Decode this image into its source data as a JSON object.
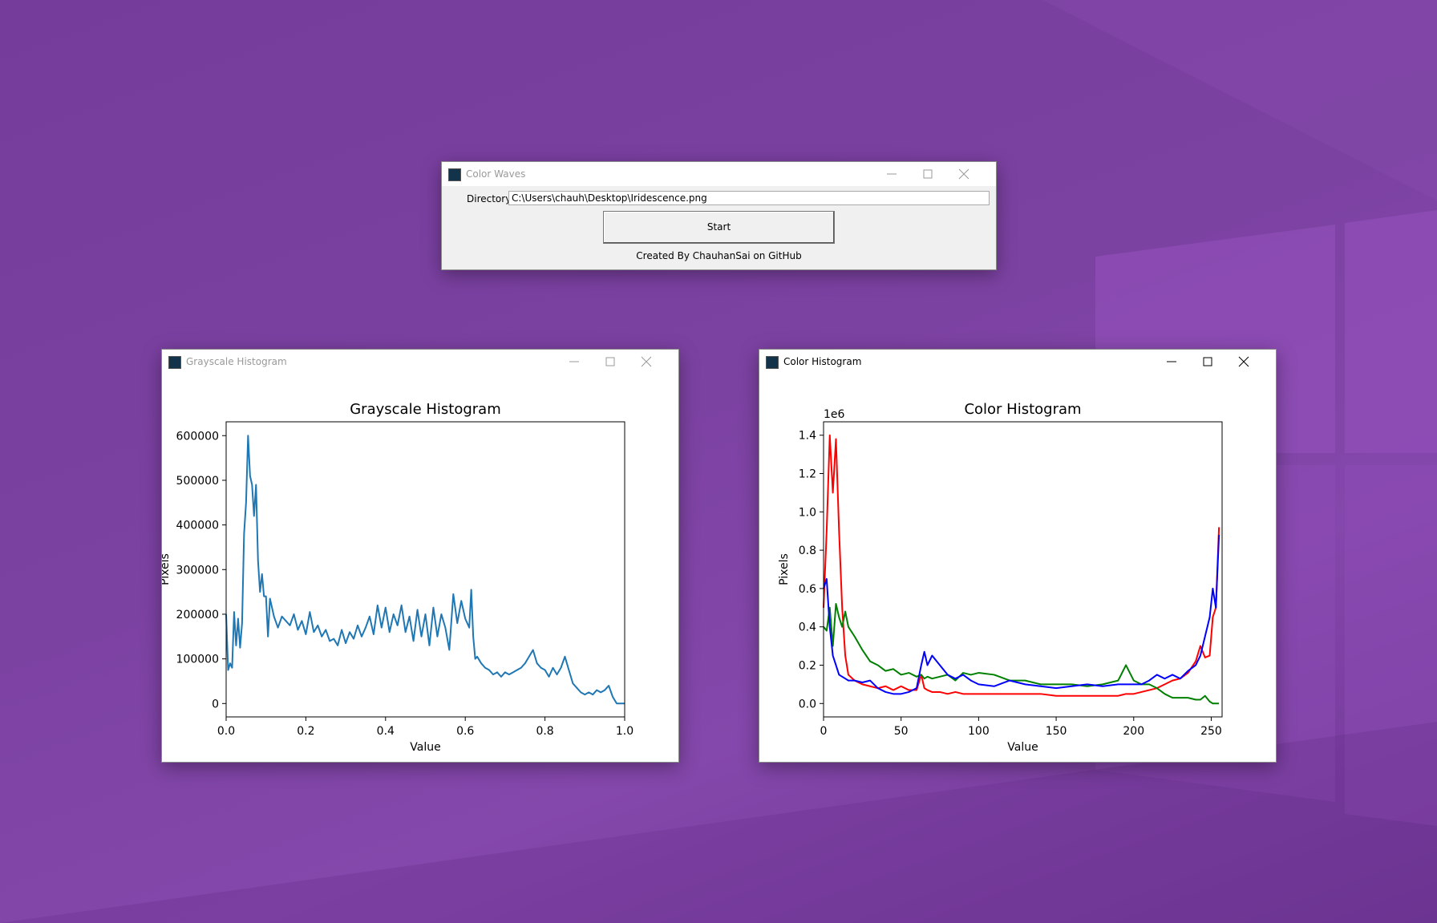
{
  "windows": [
    {
      "title": "Color Waves",
      "directory_label": "Directory",
      "directory_value": "C:\\Users\\chauh\\Desktop\\Iridescence.png",
      "button": "Start",
      "credit": "Created By ChauhanSai on GitHub"
    },
    {
      "title": "Grayscale Histogram"
    },
    {
      "title": "Color Histogram"
    }
  ],
  "chart_data": [
    {
      "type": "line",
      "title": "Grayscale Histogram",
      "xlabel": "Value",
      "ylabel": "Pixels",
      "color": "#1f77b4",
      "x": [
        0,
        0.005,
        0.01,
        0.015,
        0.02,
        0.025,
        0.03,
        0.035,
        0.04,
        0.045,
        0.05,
        0.055,
        0.06,
        0.065,
        0.07,
        0.075,
        0.08,
        0.085,
        0.09,
        0.095,
        0.1,
        0.105,
        0.11,
        0.12,
        0.13,
        0.14,
        0.15,
        0.16,
        0.17,
        0.18,
        0.19,
        0.2,
        0.21,
        0.22,
        0.23,
        0.24,
        0.25,
        0.26,
        0.27,
        0.28,
        0.29,
        0.3,
        0.31,
        0.32,
        0.33,
        0.34,
        0.35,
        0.36,
        0.37,
        0.38,
        0.39,
        0.4,
        0.41,
        0.42,
        0.43,
        0.44,
        0.45,
        0.46,
        0.47,
        0.48,
        0.49,
        0.5,
        0.51,
        0.52,
        0.53,
        0.54,
        0.55,
        0.56,
        0.57,
        0.58,
        0.59,
        0.6,
        0.61,
        0.615,
        0.62,
        0.625,
        0.63,
        0.64,
        0.65,
        0.66,
        0.67,
        0.68,
        0.69,
        0.7,
        0.71,
        0.72,
        0.73,
        0.74,
        0.75,
        0.76,
        0.77,
        0.78,
        0.79,
        0.8,
        0.81,
        0.82,
        0.83,
        0.84,
        0.85,
        0.86,
        0.87,
        0.88,
        0.89,
        0.9,
        0.91,
        0.92,
        0.93,
        0.94,
        0.95,
        0.96,
        0.97,
        0.98,
        0.99,
        1.0
      ],
      "values": [
        200000,
        75000,
        90000,
        80000,
        205000,
        130000,
        190000,
        125000,
        180000,
        380000,
        450000,
        600000,
        510000,
        490000,
        420000,
        490000,
        320000,
        250000,
        290000,
        240000,
        240000,
        150000,
        235000,
        195000,
        170000,
        195000,
        185000,
        175000,
        200000,
        165000,
        185000,
        155000,
        205000,
        160000,
        175000,
        150000,
        165000,
        140000,
        145000,
        130000,
        165000,
        135000,
        160000,
        145000,
        175000,
        150000,
        170000,
        195000,
        155000,
        220000,
        170000,
        215000,
        160000,
        200000,
        175000,
        220000,
        160000,
        195000,
        140000,
        210000,
        150000,
        200000,
        130000,
        215000,
        150000,
        200000,
        170000,
        120000,
        245000,
        180000,
        230000,
        190000,
        170000,
        255000,
        150000,
        100000,
        105000,
        90000,
        80000,
        75000,
        65000,
        70000,
        60000,
        70000,
        65000,
        70000,
        75000,
        80000,
        90000,
        105000,
        120000,
        90000,
        80000,
        75000,
        60000,
        80000,
        65000,
        80000,
        105000,
        75000,
        45000,
        35000,
        25000,
        20000,
        25000,
        20000,
        30000,
        25000,
        30000,
        40000,
        15000,
        0,
        0,
        0
      ],
      "xlim": [
        0,
        1
      ],
      "xticks": [
        {
          "value": 0,
          "label": "0.0"
        },
        0.2,
        0.4,
        0.6,
        0.8,
        {
          "value": 1,
          "label": "1.0"
        }
      ],
      "ylim": [
        -30000,
        631000
      ],
      "yticks": [
        0,
        100000,
        200000,
        300000,
        400000,
        500000,
        600000
      ]
    },
    {
      "type": "line",
      "title": "Color Histogram",
      "xlabel": "Value",
      "ylabel": "Pixels",
      "y_offset_label": "1e6",
      "x": [
        0,
        2,
        4,
        6,
        8,
        10,
        12,
        14,
        16,
        20,
        25,
        30,
        35,
        40,
        45,
        50,
        55,
        60,
        63,
        65,
        67,
        70,
        75,
        80,
        85,
        90,
        95,
        100,
        110,
        120,
        130,
        140,
        150,
        160,
        170,
        180,
        190,
        195,
        200,
        205,
        210,
        215,
        220,
        225,
        230,
        235,
        240,
        243,
        246,
        249,
        251,
        253,
        255
      ],
      "series": [
        {
          "color": "#ff0000",
          "values": [
            0.5,
            0.9,
            1.4,
            1.1,
            1.38,
            0.9,
            0.5,
            0.25,
            0.15,
            0.12,
            0.1,
            0.09,
            0.08,
            0.09,
            0.07,
            0.09,
            0.07,
            0.07,
            0.15,
            0.08,
            0.07,
            0.06,
            0.06,
            0.05,
            0.06,
            0.05,
            0.05,
            0.05,
            0.05,
            0.05,
            0.05,
            0.05,
            0.04,
            0.04,
            0.04,
            0.04,
            0.04,
            0.05,
            0.05,
            0.06,
            0.07,
            0.08,
            0.1,
            0.12,
            0.13,
            0.16,
            0.22,
            0.3,
            0.24,
            0.25,
            0.45,
            0.5,
            0.92
          ]
        },
        {
          "color": "#008000",
          "values": [
            0.4,
            0.38,
            0.5,
            0.3,
            0.52,
            0.45,
            0.4,
            0.48,
            0.4,
            0.35,
            0.28,
            0.22,
            0.2,
            0.17,
            0.18,
            0.15,
            0.16,
            0.14,
            0.15,
            0.13,
            0.14,
            0.13,
            0.14,
            0.15,
            0.12,
            0.16,
            0.15,
            0.16,
            0.15,
            0.12,
            0.12,
            0.1,
            0.1,
            0.1,
            0.09,
            0.1,
            0.12,
            0.2,
            0.12,
            0.1,
            0.1,
            0.08,
            0.05,
            0.03,
            0.03,
            0.03,
            0.02,
            0.02,
            0.04,
            0.01,
            0,
            0,
            0
          ]
        },
        {
          "color": "#0000ff",
          "values": [
            0.6,
            0.65,
            0.4,
            0.25,
            0.2,
            0.15,
            0.14,
            0.13,
            0.12,
            0.12,
            0.11,
            0.12,
            0.08,
            0.06,
            0.05,
            0.05,
            0.06,
            0.08,
            0.2,
            0.27,
            0.2,
            0.25,
            0.2,
            0.15,
            0.13,
            0.15,
            0.12,
            0.1,
            0.09,
            0.12,
            0.1,
            0.09,
            0.08,
            0.09,
            0.1,
            0.09,
            0.1,
            0.1,
            0.1,
            0.1,
            0.12,
            0.15,
            0.13,
            0.15,
            0.13,
            0.17,
            0.2,
            0.25,
            0.35,
            0.45,
            0.6,
            0.5,
            0.88
          ]
        }
      ],
      "xlim": [
        0,
        257
      ],
      "xticks": [
        0,
        50,
        100,
        150,
        200,
        250
      ],
      "ylim": [
        -0.07,
        1.47
      ],
      "yticks": [
        {
          "value": 0,
          "label": "0.0"
        },
        0.2,
        0.4,
        0.6,
        0.8,
        {
          "value": 1,
          "label": "1.0"
        },
        1.2,
        1.4
      ]
    }
  ]
}
